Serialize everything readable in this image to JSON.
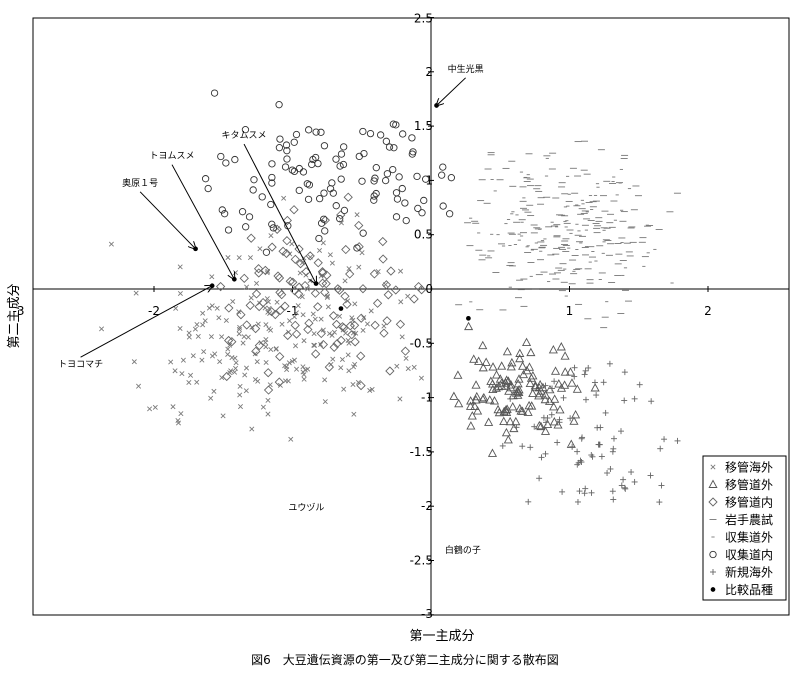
{
  "chart_data": {
    "type": "scatter",
    "xlabel": "第一主成分",
    "ylabel": "第二主成分",
    "caption": "図6　大豆遺伝資源の第一及び第二主成分に関する散布図",
    "xlim": [
      -3,
      2.5
    ],
    "ylim": [
      -3,
      2.5
    ],
    "x_ticks": [
      "-3",
      "-2",
      "-1",
      "0",
      "1",
      "2"
    ],
    "y_ticks": [
      "2.5",
      "2",
      "1.5",
      "1",
      "0.5",
      "0",
      "-0.5",
      "-1",
      "-1.5",
      "-2",
      "-2.5",
      "-3"
    ],
    "grid": false,
    "legend_position": "bottom-right",
    "series": [
      {
        "name": "移管海外",
        "marker": "x",
        "color": "#7a7a7a",
        "region": [
          -2.5,
          0.3,
          -1.8,
          0.9
        ],
        "count": 220,
        "seed": 11
      },
      {
        "name": "移管道外",
        "marker": "triangle",
        "color": "#555555",
        "region": [
          0.0,
          1.3,
          -1.6,
          -0.3
        ],
        "count": 120,
        "seed": 23
      },
      {
        "name": "移管道内",
        "marker": "diamond",
        "color": "#666666",
        "region": [
          -1.9,
          0.2,
          -1.2,
          1.0
        ],
        "count": 110,
        "seed": 37
      },
      {
        "name": "岩手農試",
        "marker": "dash",
        "color": "#777777",
        "region": [
          0.0,
          1.9,
          -0.5,
          1.6
        ],
        "count": 200,
        "seed": 41
      },
      {
        "name": "収集道外",
        "marker": "dot",
        "color": "#777777",
        "region": [
          0.0,
          1.9,
          -0.3,
          1.5
        ],
        "count": 90,
        "seed": 53
      },
      {
        "name": "収集道内",
        "marker": "circle",
        "color": "#333333",
        "region": [
          -2.0,
          0.8,
          0.1,
          1.9
        ],
        "count": 110,
        "seed": 67
      },
      {
        "name": "新規海外",
        "marker": "plus",
        "color": "#666666",
        "region": [
          0.3,
          2.0,
          -2.4,
          -0.2
        ],
        "count": 80,
        "seed": 79
      },
      {
        "name": "比較品種",
        "marker": "point",
        "color": "#000000",
        "points": [
          {
            "label": "中生光黒",
            "x": 0.04,
            "y": 1.69
          },
          {
            "label": "キタムスメ",
            "x": -0.83,
            "y": 0.05
          },
          {
            "label": "トヨムスメ",
            "x": -1.42,
            "y": 0.09
          },
          {
            "label": "奥原１号",
            "x": -1.7,
            "y": 0.37
          },
          {
            "label": "トヨコマチ",
            "x": -1.58,
            "y": 0.03
          },
          {
            "label": "ユウヅル",
            "x": -0.65,
            "y": -0.18
          },
          {
            "label": "白鶴の子",
            "x": 0.27,
            "y": -0.27
          }
        ]
      }
    ],
    "annotations": [
      {
        "text": "中生光黒",
        "x": 0.25,
        "y": 2.0,
        "target_x": 0.04,
        "target_y": 1.69
      },
      {
        "text": "キタムスメ",
        "x": -1.35,
        "y": 1.39,
        "target_x": -0.83,
        "target_y": 0.05
      },
      {
        "text": "トヨムスメ",
        "x": -1.87,
        "y": 1.2,
        "target_x": -1.42,
        "target_y": 0.09
      },
      {
        "text": "奥原１号",
        "x": -2.1,
        "y": 0.95,
        "target_x": -1.7,
        "target_y": 0.37
      },
      {
        "text": "トヨコマチ",
        "x": -2.53,
        "y": -0.72,
        "target_x": -1.58,
        "target_y": 0.03
      },
      {
        "text": "ユウヅル",
        "x": -0.9,
        "y": -2.04,
        "target_x": null,
        "target_y": null
      },
      {
        "text": "白鶴の子",
        "x": 0.23,
        "y": -2.43,
        "target_x": null,
        "target_y": null
      }
    ]
  }
}
